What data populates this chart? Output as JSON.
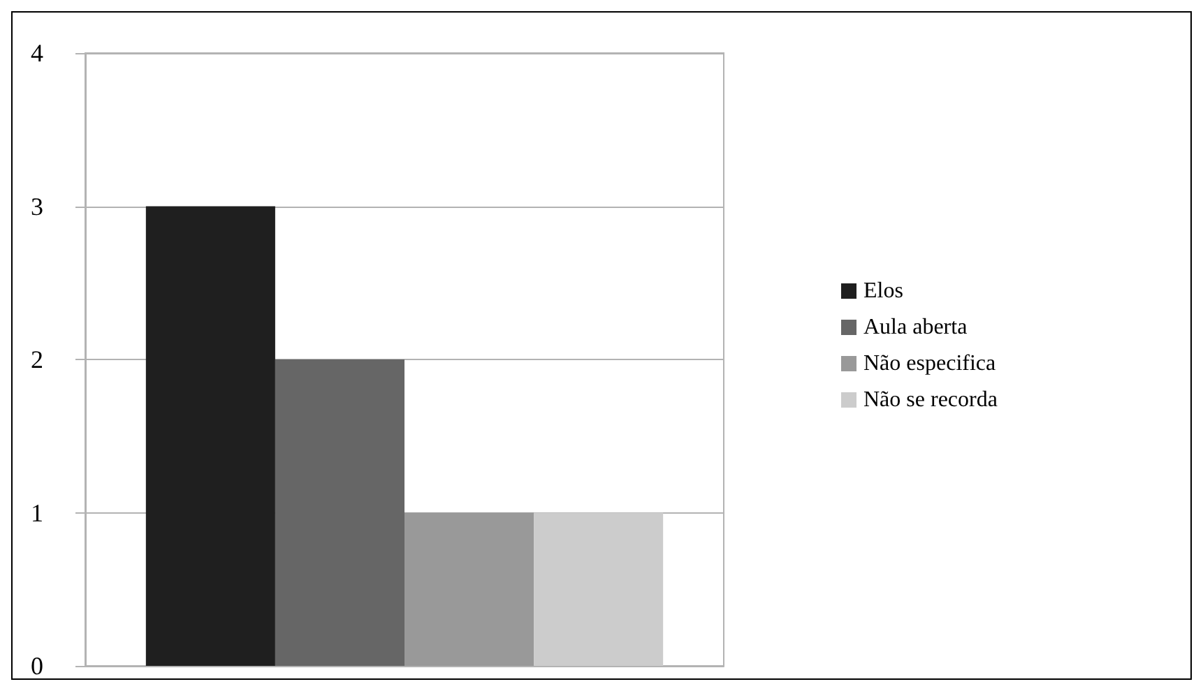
{
  "chart_data": {
    "type": "bar",
    "categories": [
      null
    ],
    "series": [
      {
        "name": "Elos",
        "color": "#1f1f1f",
        "values": [
          3
        ]
      },
      {
        "name": "Aula aberta",
        "color": "#666666",
        "values": [
          2
        ]
      },
      {
        "name": "Não especifica",
        "color": "#999999",
        "values": [
          1
        ]
      },
      {
        "name": "Não se recorda",
        "color": "#cccccc",
        "values": [
          1
        ]
      }
    ],
    "ylim": [
      0,
      4
    ],
    "yticks": [
      0,
      1,
      2,
      3,
      4
    ],
    "grid": "y",
    "legend": "right"
  }
}
